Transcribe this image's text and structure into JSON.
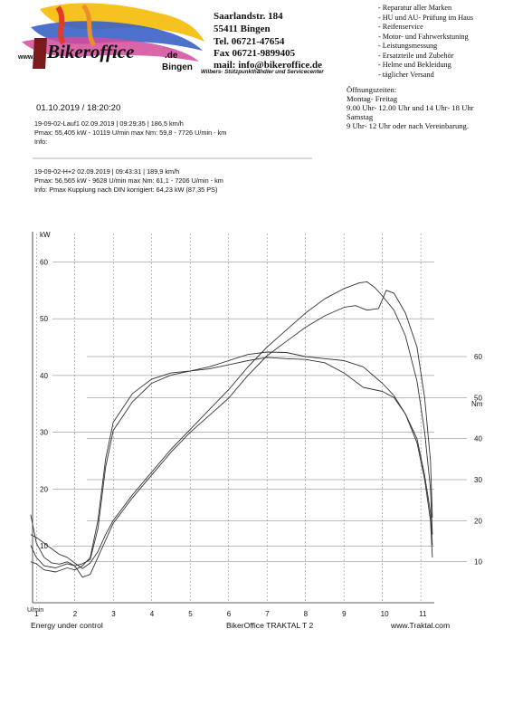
{
  "header": {
    "logo": {
      "brand": "Bikeroffice",
      "domain_left": "www.",
      "domain_right": ".de",
      "city": "Bingen"
    },
    "address_lines": [
      "Saarlandstr. 184",
      "55411 Bingen",
      "Tel. 06721-47654",
      "Fax 06721-9899405",
      "mail: info@bikeroffice.de"
    ],
    "tagline": "Wilbers- Stützpunkthändler und Servicecenter",
    "services": [
      "- Reparatur aller Marken",
      "- HU und AU- Prüfung im Haus",
      "- Reifenservice",
      "- Motor- und Fahrwerkstuning",
      "- Leistungsmessung",
      "- Ersatzteile und Zubehör",
      "- Helme und Bekleidung",
      "- täglicher Versand"
    ],
    "opening_hours": [
      "Öffnungszeiten:",
      "Montag- Freitag",
      "9.00 Uhr- 12.00 Uhr und 14 Uhr- 18 Uhr",
      "Samstag",
      "9 Uhr- 12 Uhr oder nach Vereinbarung."
    ]
  },
  "report": {
    "datetime": "01.10.2019  /  18:20:20",
    "run1_lines": [
      "19-09-02-Lauf1      02.09.2019   |  09:29:35  |  186,5 km/h",
      "Pmax: 55,405 kW - 10119 U/min    max Nm: 59,8 - 7726 U/min      - km",
      "Info:"
    ],
    "run2_lines": [
      "19-09-02-H+2     02.09.2019   |  09:43:31  |  189,9 km/h",
      "Pmax: 56,565 kW - 9628 U/min    max Nm: 61,1 - 7206 U/min     - km",
      "Info: Pmax Kupplung nach DIN korrigiert: 64,23 kW (87,35 PS)"
    ]
  },
  "chart_data": {
    "type": "line",
    "x_unit_label": "U/min",
    "x_ticks": [
      "1",
      "2",
      "3",
      "4",
      "5",
      "6",
      "7",
      "8",
      "9",
      "10",
      "11"
    ],
    "x_tick_values": [
      1,
      2,
      3,
      4,
      5,
      6,
      7,
      8,
      9,
      10,
      11
    ],
    "xlim": [
      0.9,
      11.35
    ],
    "left_axis": {
      "label": "kW",
      "ticks": [
        "10",
        "20",
        "30",
        "40",
        "50",
        "60"
      ],
      "tick_values": [
        10,
        20,
        30,
        40,
        50,
        60
      ],
      "ylim": [
        0,
        65
      ]
    },
    "right_axis": {
      "label": "Nm",
      "ticks": [
        "10",
        "20",
        "30",
        "40",
        "50",
        "60"
      ],
      "tick_values": [
        10,
        20,
        30,
        40,
        50,
        60
      ],
      "ylim": [
        0,
        90
      ]
    },
    "grid": true,
    "series": [
      {
        "name": "19-09-02-Lauf1 kW",
        "axis": "left",
        "color": "#333333",
        "points": [
          [
            0.85,
            15.5
          ],
          [
            1.0,
            10.5
          ],
          [
            1.2,
            8.0
          ],
          [
            1.4,
            7.0
          ],
          [
            1.6,
            6.8
          ],
          [
            1.8,
            7.2
          ],
          [
            2.0,
            6.5
          ],
          [
            2.2,
            4.5
          ],
          [
            2.4,
            5.0
          ],
          [
            2.6,
            8.0
          ],
          [
            2.8,
            11.0
          ],
          [
            3.0,
            14.0
          ],
          [
            3.5,
            18.5
          ],
          [
            4.0,
            22.5
          ],
          [
            4.5,
            26.5
          ],
          [
            5.0,
            30.0
          ],
          [
            5.5,
            33.0
          ],
          [
            6.0,
            36.0
          ],
          [
            6.5,
            40.0
          ],
          [
            7.0,
            43.5
          ],
          [
            7.5,
            46.0
          ],
          [
            8.0,
            48.5
          ],
          [
            8.5,
            50.5
          ],
          [
            9.0,
            52.0
          ],
          [
            9.3,
            52.3
          ],
          [
            9.6,
            51.5
          ],
          [
            9.9,
            51.8
          ],
          [
            10.1,
            55.0
          ],
          [
            10.3,
            54.5
          ],
          [
            10.6,
            51.0
          ],
          [
            10.9,
            45.0
          ],
          [
            11.1,
            36.0
          ],
          [
            11.25,
            25.0
          ],
          [
            11.3,
            15.0
          ]
        ]
      },
      {
        "name": "19-09-02-H+2 kW",
        "axis": "left",
        "color": "#333333",
        "points": [
          [
            0.85,
            12.0
          ],
          [
            1.0,
            11.5
          ],
          [
            1.2,
            10.5
          ],
          [
            1.4,
            9.5
          ],
          [
            1.6,
            8.5
          ],
          [
            1.8,
            8.0
          ],
          [
            2.0,
            7.0
          ],
          [
            2.2,
            6.0
          ],
          [
            2.4,
            7.0
          ],
          [
            2.6,
            9.0
          ],
          [
            2.8,
            12.0
          ],
          [
            3.0,
            14.5
          ],
          [
            3.5,
            19.0
          ],
          [
            4.0,
            23.0
          ],
          [
            4.5,
            27.0
          ],
          [
            5.0,
            30.5
          ],
          [
            5.5,
            34.0
          ],
          [
            6.0,
            37.5
          ],
          [
            6.5,
            41.5
          ],
          [
            7.0,
            45.0
          ],
          [
            7.5,
            48.0
          ],
          [
            8.0,
            51.0
          ],
          [
            8.5,
            53.5
          ],
          [
            9.0,
            55.3
          ],
          [
            9.4,
            56.3
          ],
          [
            9.6,
            56.5
          ],
          [
            9.8,
            55.5
          ],
          [
            10.0,
            54.0
          ],
          [
            10.3,
            51.5
          ],
          [
            10.6,
            47.0
          ],
          [
            10.9,
            39.0
          ],
          [
            11.1,
            30.0
          ],
          [
            11.25,
            20.0
          ],
          [
            11.3,
            12.0
          ]
        ]
      },
      {
        "name": "19-09-02-Lauf1 Nm",
        "axis": "right",
        "color": "#333333",
        "points": [
          [
            0.85,
            14.0
          ],
          [
            1.0,
            11.0
          ],
          [
            1.2,
            9.0
          ],
          [
            1.5,
            8.5
          ],
          [
            1.8,
            9.5
          ],
          [
            2.0,
            9.0
          ],
          [
            2.2,
            9.5
          ],
          [
            2.4,
            10.5
          ],
          [
            2.6,
            18.0
          ],
          [
            2.8,
            33.0
          ],
          [
            3.0,
            42.0
          ],
          [
            3.5,
            49.0
          ],
          [
            4.0,
            53.5
          ],
          [
            4.5,
            55.5
          ],
          [
            5.0,
            56.5
          ],
          [
            5.5,
            57.0
          ],
          [
            6.0,
            58.0
          ],
          [
            6.5,
            59.0
          ],
          [
            7.0,
            59.8
          ],
          [
            7.5,
            59.5
          ],
          [
            8.0,
            59.3
          ],
          [
            8.5,
            58.5
          ],
          [
            9.0,
            56.0
          ],
          [
            9.5,
            52.5
          ],
          [
            10.0,
            51.5
          ],
          [
            10.3,
            50.0
          ],
          [
            10.6,
            46.0
          ],
          [
            10.9,
            40.0
          ],
          [
            11.1,
            31.0
          ],
          [
            11.25,
            22.0
          ],
          [
            11.3,
            14.0
          ]
        ]
      },
      {
        "name": "19-09-02-H+2 Nm",
        "axis": "right",
        "color": "#333333",
        "points": [
          [
            0.85,
            10.0
          ],
          [
            1.0,
            9.5
          ],
          [
            1.2,
            8.0
          ],
          [
            1.5,
            7.5
          ],
          [
            1.8,
            8.5
          ],
          [
            2.0,
            8.0
          ],
          [
            2.2,
            9.0
          ],
          [
            2.4,
            11.0
          ],
          [
            2.6,
            20.0
          ],
          [
            2.8,
            35.0
          ],
          [
            3.0,
            44.0
          ],
          [
            3.5,
            51.0
          ],
          [
            4.0,
            54.5
          ],
          [
            4.5,
            56.0
          ],
          [
            5.0,
            56.5
          ],
          [
            5.5,
            57.5
          ],
          [
            6.0,
            59.0
          ],
          [
            6.5,
            60.5
          ],
          [
            7.0,
            61.1
          ],
          [
            7.5,
            61.0
          ],
          [
            8.0,
            60.0
          ],
          [
            8.5,
            59.5
          ],
          [
            9.0,
            59.0
          ],
          [
            9.5,
            57.5
          ],
          [
            10.0,
            53.5
          ],
          [
            10.3,
            50.5
          ],
          [
            10.6,
            46.0
          ],
          [
            10.9,
            39.0
          ],
          [
            11.1,
            30.0
          ],
          [
            11.25,
            20.0
          ],
          [
            11.3,
            11.0
          ]
        ]
      }
    ]
  },
  "footer": {
    "left": "Energy  under control",
    "center": "BikerOffice TRAKTAL  T 2",
    "right": "www.Traktal.com"
  }
}
